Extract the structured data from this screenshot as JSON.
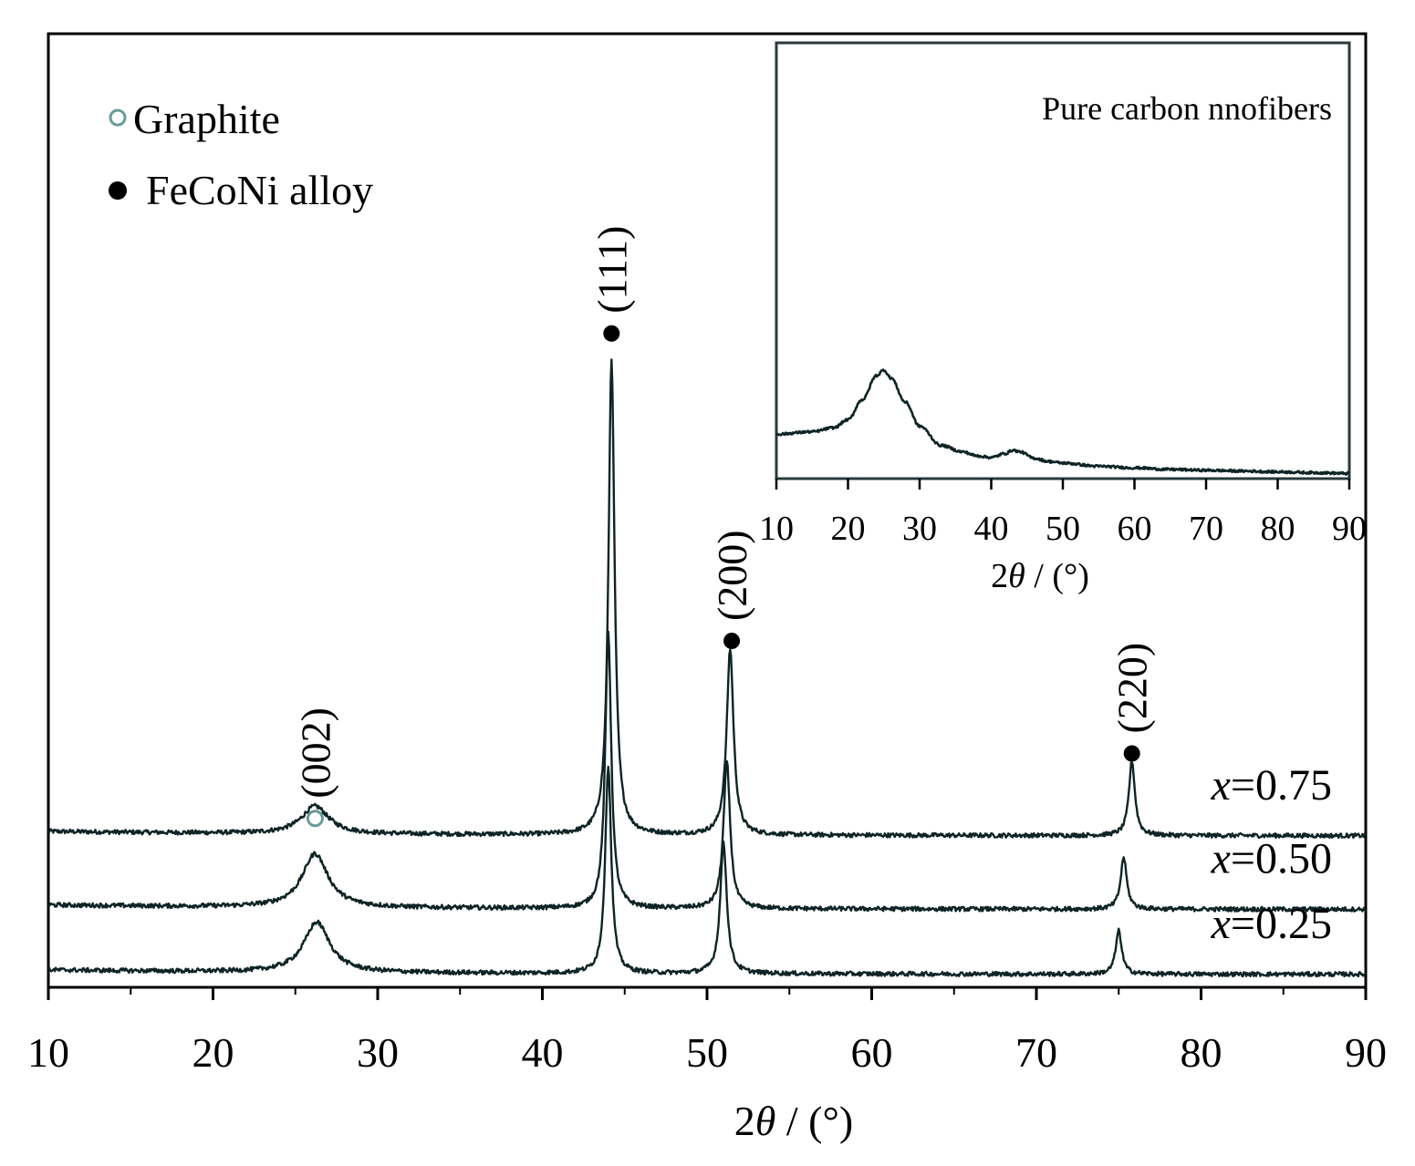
{
  "chart_data": [
    {
      "type": "line",
      "title": "",
      "xlabel_prefix": "2",
      "xlabel_symbol": "θ",
      "xlabel_suffix": " / (°)",
      "xlim": [
        10,
        90
      ],
      "x_ticks": [
        "10",
        "20",
        "30",
        "40",
        "50",
        "60",
        "70",
        "80",
        "90"
      ],
      "y_ticks_shown": false,
      "legend": {
        "placement": "top-left",
        "entries": [
          {
            "label": "Graphite",
            "marker": "open-circle",
            "color": "#6a9a9a"
          },
          {
            "label": "FeCoNi alloy",
            "marker": "filled-circle",
            "color": "#000000"
          }
        ]
      },
      "peaks": [
        {
          "x": 26.2,
          "y": 1.95,
          "label": "(002)",
          "marker": "open-circle"
        },
        {
          "x": 44.2,
          "y": 7.55,
          "label": "(111)",
          "marker": "filled-circle"
        },
        {
          "x": 51.5,
          "y": 4.0,
          "label": "(200)",
          "marker": "filled-circle"
        },
        {
          "x": 75.8,
          "y": 2.7,
          "label": "(220)",
          "marker": "filled-circle"
        }
      ],
      "series": [
        {
          "label_prefix": "x",
          "label_value": "=0.75",
          "offset": 1.75,
          "peaks": [
            {
              "center": 26.2,
              "height": 0.32,
              "width": 1.0
            },
            {
              "center": 44.2,
              "height": 5.5,
              "width": 0.22
            },
            {
              "center": 51.4,
              "height": 2.15,
              "width": 0.25
            },
            {
              "center": 75.8,
              "height": 0.86,
              "width": 0.22
            }
          ]
        },
        {
          "label_prefix": "x",
          "label_value": "=0.50",
          "offset": 0.9,
          "peaks": [
            {
              "center": 26.2,
              "height": 0.62,
              "width": 0.95
            },
            {
              "center": 44.0,
              "height": 3.2,
              "width": 0.22
            },
            {
              "center": 51.2,
              "height": 1.7,
              "width": 0.24
            },
            {
              "center": 75.3,
              "height": 0.6,
              "width": 0.22
            }
          ]
        },
        {
          "label_prefix": "x",
          "label_value": "=0.25",
          "offset": 0.15,
          "peaks": [
            {
              "center": 26.3,
              "height": 0.58,
              "width": 0.95
            },
            {
              "center": 44.0,
              "height": 2.4,
              "width": 0.22
            },
            {
              "center": 51.0,
              "height": 1.5,
              "width": 0.24
            },
            {
              "center": 75.0,
              "height": 0.5,
              "width": 0.22
            }
          ]
        }
      ]
    },
    {
      "type": "line",
      "title": "Pure carbon nnofibers",
      "placement": "inset top-right",
      "xlabel_prefix": "2",
      "xlabel_symbol": "θ",
      "xlabel_suffix": " / (°)",
      "xlim": [
        10,
        90
      ],
      "x_ticks": [
        "10",
        "20",
        "30",
        "40",
        "50",
        "60",
        "70",
        "80",
        "90"
      ],
      "y_ticks_shown": false,
      "series": [
        {
          "name": "Pure carbon nnofibers",
          "x": [
            10,
            15,
            18,
            20,
            22,
            24,
            25,
            26,
            28,
            30,
            33,
            36,
            38,
            40,
            42,
            43,
            44,
            46,
            48,
            50,
            55,
            60,
            65,
            70,
            75,
            80,
            85,
            90
          ],
          "y": [
            0.52,
            0.55,
            0.6,
            0.7,
            0.95,
            1.25,
            1.32,
            1.22,
            0.92,
            0.62,
            0.38,
            0.3,
            0.25,
            0.23,
            0.28,
            0.32,
            0.3,
            0.22,
            0.18,
            0.16,
            0.12,
            0.1,
            0.08,
            0.07,
            0.06,
            0.05,
            0.04,
            0.03
          ]
        }
      ]
    }
  ]
}
